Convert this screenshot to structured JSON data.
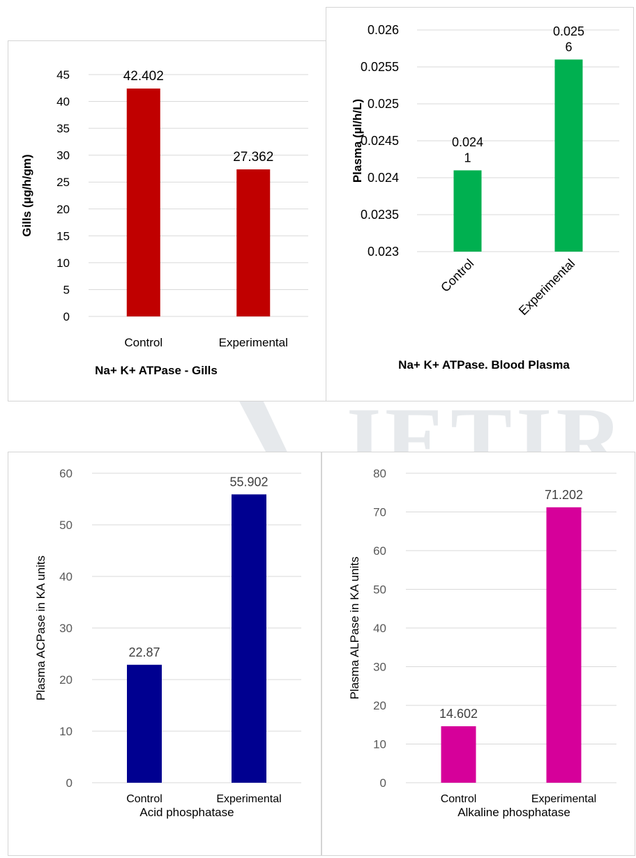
{
  "watermark": {
    "text": "JETIR"
  },
  "chart_data": [
    {
      "type": "bar",
      "categories": [
        "Control",
        "Experimental"
      ],
      "values": [
        42.402,
        27.362
      ],
      "value_labels": [
        "42.402",
        "27.362"
      ],
      "title": "Na+ K+ ATPase - Gills",
      "ylabel": "Gills (µg/h/gm)",
      "ylim": [
        0,
        45
      ],
      "yticks": [
        "0",
        "5",
        "10",
        "15",
        "20",
        "25",
        "30",
        "35",
        "40",
        "45"
      ],
      "grid": true,
      "color": "#c00000"
    },
    {
      "type": "bar",
      "categories": [
        "Control",
        "Experimental"
      ],
      "values": [
        0.0241,
        0.0256
      ],
      "value_labels": [
        [
          "0.024",
          "1"
        ],
        [
          "0.025",
          "6"
        ]
      ],
      "title": "Na+ K+ ATPase. Blood Plasma",
      "ylabel": "Plasma (µl/h/L)",
      "ylim": [
        0.023,
        0.026
      ],
      "yticks": [
        "0.023",
        "0.0235",
        "0.024",
        "0.0245",
        "0.025",
        "0.0255",
        "0.026"
      ],
      "grid": true,
      "color": "#00b050"
    },
    {
      "type": "bar",
      "categories": [
        "Control",
        "Experimental"
      ],
      "values": [
        22.87,
        55.902
      ],
      "value_labels": [
        "22.87",
        "55.902"
      ],
      "title": "Acid phosphatase",
      "ylabel": "Plasma ACPase in KA units",
      "ylim": [
        0,
        60
      ],
      "yticks": [
        "0",
        "10",
        "20",
        "30",
        "40",
        "50",
        "60"
      ],
      "grid": true,
      "color": "#000090"
    },
    {
      "type": "bar",
      "categories": [
        "Control",
        "Experimental"
      ],
      "values": [
        14.602,
        71.202
      ],
      "value_labels": [
        "14.602",
        "71.202"
      ],
      "title": "Alkaline phosphatase",
      "ylabel": "Plasma ALPase in KA units",
      "ylim": [
        0,
        80
      ],
      "yticks": [
        "0",
        "10",
        "20",
        "30",
        "40",
        "50",
        "60",
        "70",
        "80"
      ],
      "grid": true,
      "color": "#d6009a"
    }
  ]
}
